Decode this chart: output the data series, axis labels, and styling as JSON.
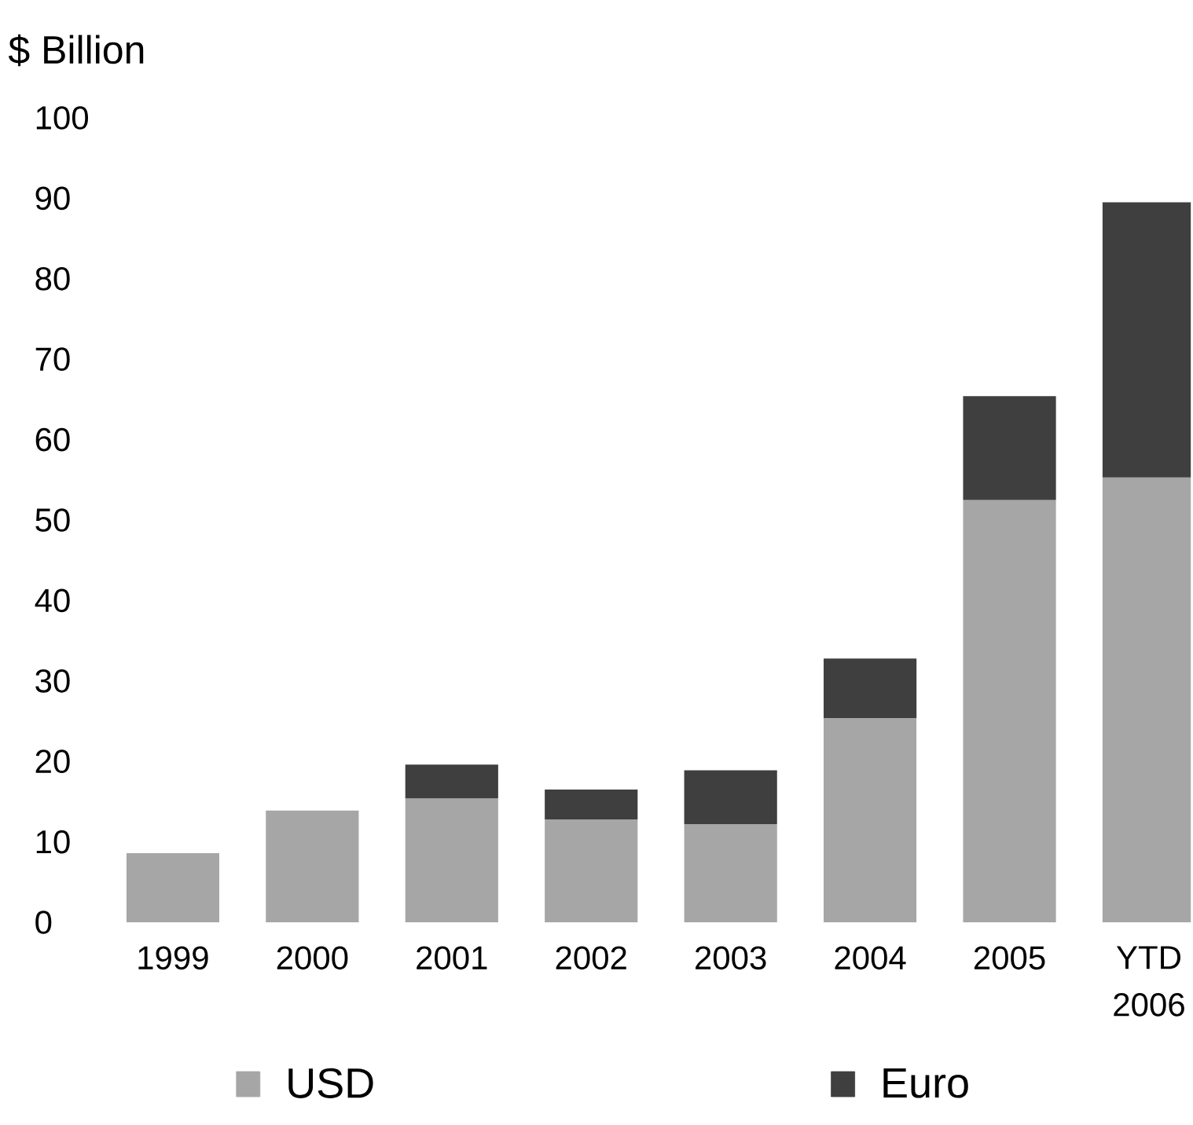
{
  "chart_data": {
    "type": "bar",
    "stacked": true,
    "ylabel": "$ Billion",
    "categories": [
      "1999",
      "2000",
      "2001",
      "2002",
      "2003",
      "2004",
      "2005",
      "YTD 2006"
    ],
    "series": [
      {
        "name": "USD",
        "color": "#a6a6a6",
        "values": [
          8.6,
          13.9,
          15.4,
          12.8,
          12.2,
          25.4,
          52.5,
          55.3
        ]
      },
      {
        "name": "Euro",
        "color": "#3f3f3f",
        "values": [
          null,
          null,
          4.2,
          3.7,
          6.7,
          7.4,
          12.9,
          34.2
        ]
      }
    ],
    "ylim": [
      0,
      100
    ],
    "yticks": [
      0,
      10,
      20,
      30,
      40,
      50,
      60,
      70,
      80,
      90,
      100
    ],
    "legend": "bottom"
  }
}
